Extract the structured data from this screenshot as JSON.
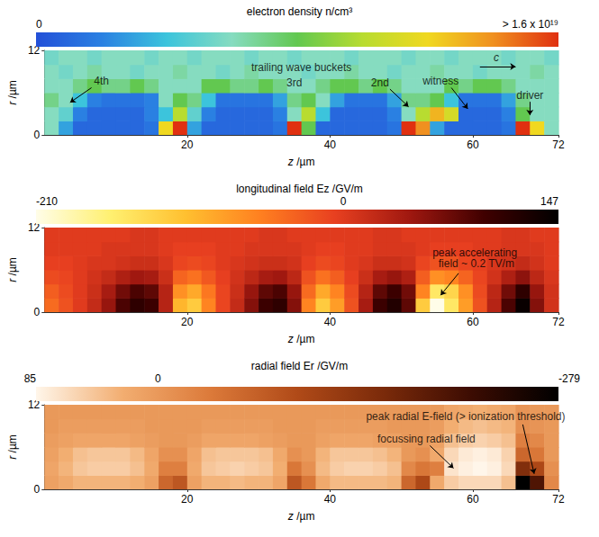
{
  "chart_data": [
    {
      "type": "heatmap",
      "title": "electron density n/cm³",
      "colorbar_range": [
        0,
        1.6e+19
      ],
      "colorbar_ticks": [
        0,
        {
          "value": 1.6e+19,
          "label": "> 1.6 x 10¹⁹"
        }
      ],
      "xlabel": "z /µm",
      "ylabel": "r /µm",
      "xlim": [
        0,
        72
      ],
      "xticks": [
        20,
        40,
        60,
        72
      ],
      "ylim": [
        0,
        12
      ],
      "yticks": [
        0,
        12
      ],
      "grid": false,
      "x": [
        1,
        3,
        5,
        7,
        9,
        11,
        13,
        15,
        17,
        19,
        21,
        23,
        25,
        27,
        29,
        31,
        33,
        35,
        37,
        39,
        41,
        43,
        45,
        47,
        49,
        51,
        53,
        55,
        57,
        59,
        61,
        63,
        65,
        67,
        69,
        71
      ],
      "y": [
        1,
        3,
        5,
        7,
        9,
        11
      ],
      "cells": [
        [
          6e+18,
          3e+18,
          1e+18,
          1e+18,
          1e+18,
          1e+18,
          1e+18,
          1.5e+18,
          1.2e+19,
          1.6e+19,
          3e+18,
          1e+18,
          1e+18,
          1e+18,
          1e+18,
          1e+18,
          1.5e+18,
          1.6e+19,
          8e+18,
          1e+18,
          1e+18,
          1e+18,
          1e+18,
          1e+18,
          1.5e+18,
          1.6e+19,
          1.4e+19,
          3e+18,
          1e+18,
          1e+18,
          1e+18,
          1e+18,
          1.5e+18,
          1.6e+19,
          1.2e+19,
          6e+18
        ],
        [
          6e+18,
          5e+18,
          2e+18,
          1e+18,
          1e+18,
          1e+18,
          1e+18,
          2e+18,
          4e+18,
          1e+19,
          5e+18,
          2e+18,
          1e+18,
          1e+18,
          1e+18,
          1e+18,
          2e+18,
          6e+18,
          1e+19,
          4e+18,
          1e+18,
          1e+18,
          1e+18,
          1e+18,
          2e+18,
          6e+18,
          1e+19,
          1.3e+19,
          1.1e+19,
          1e+18,
          1e+18,
          1e+18,
          2e+18,
          8e+18,
          6e+18,
          6e+18
        ],
        [
          7e+18,
          6e+18,
          4e+18,
          2e+18,
          1.5e+18,
          1.5e+18,
          1.5e+18,
          2e+18,
          6e+18,
          8e+18,
          7e+18,
          4e+18,
          1.5e+18,
          1.5e+18,
          1.5e+18,
          1.5e+18,
          3e+18,
          7e+18,
          8e+18,
          6e+18,
          3e+18,
          1.5e+18,
          1.5e+18,
          1.5e+18,
          3e+18,
          7e+18,
          7e+18,
          8e+18,
          4e+18,
          1.5e+18,
          1.5e+18,
          1.5e+18,
          3e+18,
          7e+18,
          6e+18,
          6e+18
        ],
        [
          6e+18,
          6e+18,
          7e+18,
          8e+18,
          7e+18,
          7e+18,
          8e+18,
          7e+18,
          6e+18,
          6e+18,
          6e+18,
          8e+18,
          8e+18,
          7e+18,
          7e+18,
          8e+18,
          7e+18,
          6e+18,
          6e+18,
          7e+18,
          8e+18,
          8e+18,
          7e+18,
          8e+18,
          7e+18,
          6e+18,
          6e+18,
          6e+18,
          8e+18,
          7e+18,
          8e+18,
          8e+18,
          7e+18,
          6e+18,
          6e+18,
          6e+18
        ],
        [
          6e+18,
          5.5e+18,
          6e+18,
          6.5e+18,
          6e+18,
          6e+18,
          5.5e+18,
          6e+18,
          6e+18,
          6.5e+18,
          6e+18,
          6e+18,
          5.5e+18,
          6e+18,
          6.5e+18,
          6e+18,
          6e+18,
          6e+18,
          5.5e+18,
          6e+18,
          6e+18,
          6.5e+18,
          6e+18,
          6e+18,
          5.5e+18,
          6e+18,
          6e+18,
          6.5e+18,
          6e+18,
          6e+18,
          5.5e+18,
          6e+18,
          6e+18,
          6e+18,
          6.5e+18,
          6e+18
        ],
        [
          5.5e+18,
          6e+18,
          6e+18,
          5.5e+18,
          6e+18,
          6e+18,
          6e+18,
          5.5e+18,
          6e+18,
          6e+18,
          5.5e+18,
          6e+18,
          6e+18,
          6e+18,
          5.5e+18,
          6e+18,
          6e+18,
          5.5e+18,
          6e+18,
          6e+18,
          6e+18,
          5.5e+18,
          6e+18,
          6e+18,
          6e+18,
          5.5e+18,
          6e+18,
          6e+18,
          5.5e+18,
          6e+18,
          6e+18,
          6e+18,
          5.5e+18,
          6e+18,
          6e+18,
          5.5e+18
        ]
      ],
      "annotations": [
        "trailing wave buckets",
        "4th",
        "3rd",
        "2nd",
        "witness",
        "driver",
        "c"
      ]
    },
    {
      "type": "heatmap",
      "title": "longitudinal field Ez /GV/m",
      "colorbar_range": [
        -210,
        147
      ],
      "colorbar_ticks": [
        -210,
        0,
        147
      ],
      "xlabel": "z /µm",
      "ylabel": "r /µm",
      "xlim": [
        0,
        72
      ],
      "xticks": [
        20,
        40,
        60,
        72
      ],
      "ylim": [
        0,
        12
      ],
      "yticks": [
        0,
        12
      ],
      "grid": false,
      "x": [
        1,
        3,
        5,
        7,
        9,
        11,
        13,
        15,
        17,
        19,
        21,
        23,
        25,
        27,
        29,
        31,
        33,
        35,
        37,
        39,
        41,
        43,
        45,
        47,
        49,
        51,
        53,
        55,
        57,
        59,
        61,
        63,
        65,
        67,
        69,
        71
      ],
      "y": [
        1,
        3,
        5,
        7,
        9,
        11
      ],
      "cells": [
        [
          -40,
          -20,
          0,
          20,
          50,
          90,
          110,
          100,
          30,
          -100,
          -120,
          -60,
          -10,
          20,
          60,
          100,
          110,
          60,
          -60,
          -120,
          -80,
          -20,
          40,
          100,
          120,
          80,
          -120,
          -210,
          -150,
          -80,
          -20,
          30,
          90,
          140,
          60,
          10
        ],
        [
          -30,
          -15,
          0,
          15,
          40,
          70,
          90,
          80,
          30,
          -70,
          -90,
          -50,
          -10,
          15,
          50,
          80,
          90,
          50,
          -40,
          -90,
          -60,
          -15,
          30,
          80,
          100,
          70,
          -60,
          -150,
          -130,
          -70,
          -15,
          25,
          70,
          110,
          50,
          10
        ],
        [
          -15,
          -10,
          0,
          10,
          20,
          35,
          45,
          40,
          15,
          -35,
          -45,
          -25,
          -5,
          10,
          25,
          40,
          45,
          25,
          -20,
          -45,
          -30,
          -5,
          15,
          40,
          50,
          35,
          -30,
          -70,
          -60,
          -35,
          -10,
          10,
          35,
          55,
          25,
          5
        ],
        [
          -5,
          -5,
          0,
          5,
          5,
          10,
          15,
          15,
          5,
          -10,
          -15,
          -10,
          0,
          5,
          10,
          15,
          15,
          10,
          -5,
          -15,
          -10,
          0,
          5,
          15,
          15,
          10,
          -10,
          -20,
          -20,
          -10,
          -5,
          5,
          10,
          20,
          10,
          0
        ],
        [
          0,
          0,
          0,
          0,
          5,
          5,
          5,
          5,
          0,
          -5,
          -5,
          -5,
          0,
          0,
          5,
          5,
          5,
          5,
          0,
          -5,
          -5,
          0,
          0,
          5,
          5,
          5,
          0,
          -5,
          -5,
          -5,
          0,
          0,
          5,
          5,
          5,
          0
        ],
        [
          0,
          0,
          0,
          0,
          0,
          0,
          5,
          5,
          0,
          0,
          0,
          0,
          0,
          0,
          0,
          5,
          5,
          0,
          0,
          0,
          0,
          0,
          0,
          5,
          5,
          0,
          0,
          0,
          0,
          0,
          0,
          0,
          5,
          5,
          0,
          0
        ]
      ],
      "annotations": [
        "peak accelerating field ~ 0.2 TV/m"
      ]
    },
    {
      "type": "heatmap",
      "title": "radial field Er /GV/m",
      "colorbar_range": [
        85,
        -279
      ],
      "colorbar_ticks": [
        85,
        0,
        -279
      ],
      "xlabel": "z /µm",
      "ylabel": "r /µm",
      "xlim": [
        0,
        72
      ],
      "xticks": [
        20,
        40,
        60,
        72
      ],
      "ylim": [
        0,
        12
      ],
      "yticks": [
        0,
        12
      ],
      "grid": false,
      "x": [
        1,
        3,
        5,
        7,
        9,
        11,
        13,
        15,
        17,
        19,
        21,
        23,
        25,
        27,
        29,
        31,
        33,
        35,
        37,
        39,
        41,
        43,
        45,
        47,
        49,
        51,
        53,
        55,
        57,
        59,
        61,
        63,
        65,
        67,
        69,
        71
      ],
      "y": [
        1,
        3,
        5,
        7,
        9,
        11
      ],
      "cells": [
        [
          10,
          20,
          30,
          30,
          30,
          30,
          25,
          10,
          -60,
          -80,
          10,
          30,
          30,
          35,
          30,
          30,
          15,
          -80,
          -40,
          20,
          35,
          35,
          35,
          35,
          30,
          -60,
          -100,
          20,
          50,
          60,
          60,
          60,
          40,
          -279,
          -200,
          -20
        ],
        [
          15,
          30,
          45,
          50,
          50,
          50,
          40,
          20,
          -30,
          -30,
          20,
          45,
          50,
          55,
          50,
          45,
          25,
          -40,
          -10,
          35,
          50,
          55,
          55,
          50,
          40,
          -20,
          -40,
          -30,
          70,
          80,
          85,
          80,
          60,
          -150,
          -100,
          -10
        ],
        [
          10,
          25,
          40,
          45,
          45,
          45,
          35,
          15,
          -10,
          -10,
          15,
          40,
          45,
          45,
          45,
          40,
          20,
          -10,
          0,
          30,
          45,
          45,
          45,
          40,
          30,
          0,
          -10,
          20,
          60,
          75,
          80,
          75,
          55,
          -60,
          -40,
          0
        ],
        [
          5,
          10,
          15,
          15,
          15,
          15,
          10,
          5,
          0,
          0,
          5,
          15,
          15,
          15,
          15,
          10,
          5,
          0,
          0,
          10,
          15,
          15,
          15,
          10,
          10,
          0,
          0,
          10,
          40,
          50,
          55,
          50,
          40,
          -30,
          -20,
          0
        ],
        [
          0,
          5,
          5,
          5,
          5,
          5,
          5,
          0,
          0,
          0,
          0,
          5,
          5,
          5,
          5,
          5,
          0,
          0,
          0,
          5,
          5,
          5,
          5,
          5,
          0,
          0,
          0,
          5,
          25,
          35,
          40,
          35,
          30,
          -10,
          -5,
          0
        ],
        [
          0,
          0,
          0,
          0,
          0,
          0,
          0,
          0,
          0,
          0,
          0,
          0,
          0,
          0,
          0,
          0,
          0,
          0,
          0,
          0,
          0,
          0,
          0,
          0,
          0,
          0,
          0,
          0,
          15,
          20,
          25,
          20,
          15,
          -5,
          0,
          0
        ]
      ],
      "annotations": [
        "peak radial E-field (> ionization threshold)",
        "focussing radial field"
      ]
    }
  ]
}
